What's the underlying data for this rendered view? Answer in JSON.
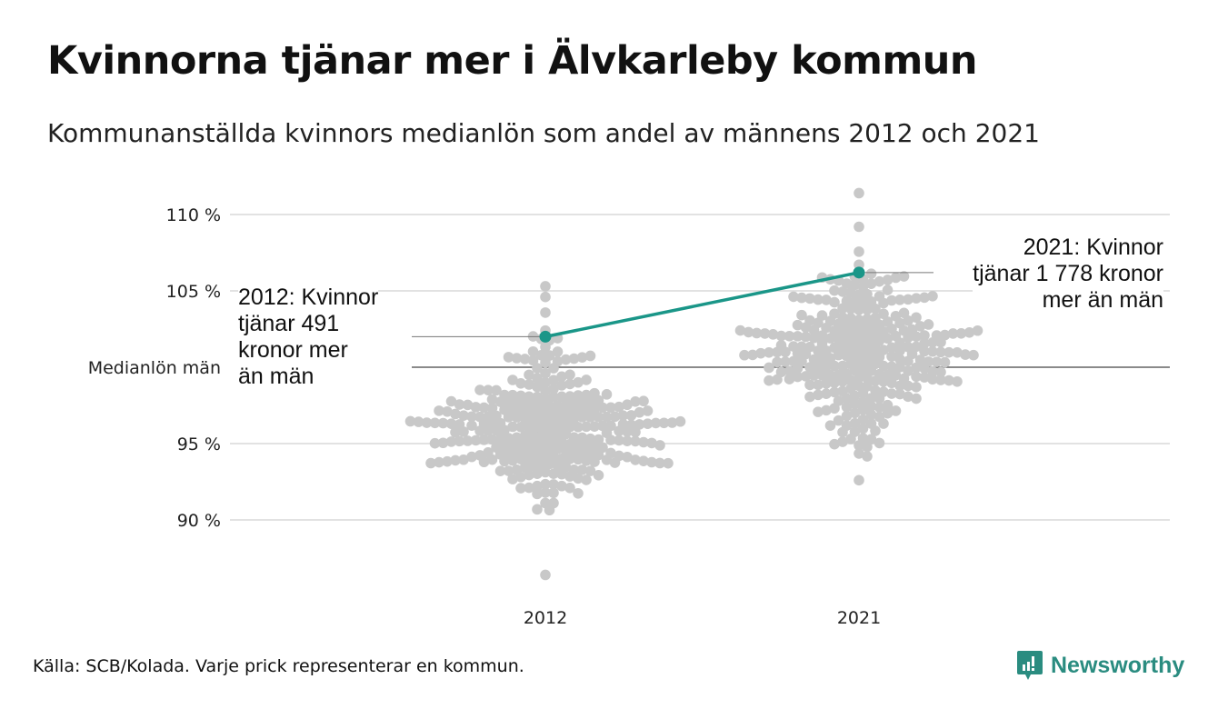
{
  "title": "Kvinnorna tjänar mer i Älvkarleby kommun",
  "subtitle": "Kommunanställda kvinnors medianlön som andel av männens 2012 och 2021",
  "source": "Källa: SCB/Kolada. Varje prick representerar en kommun.",
  "logo": "Newsworthy",
  "colors": {
    "highlight": "#1a9688",
    "dots": "#c8c8c8",
    "grid": "#e2e2e2",
    "baseline": "#444444",
    "logo": "#2a8c80"
  },
  "chart_data": {
    "type": "scatter",
    "subtype": "beeswarm",
    "title": "Kvinnorna tjänar mer i Älvkarleby kommun",
    "ylabel": "",
    "ylim": [
      85.5,
      112
    ],
    "yticks": [
      {
        "value": 110,
        "label": "110 %"
      },
      {
        "value": 105,
        "label": "105 %"
      },
      {
        "value": 100,
        "label": "Medianlön män"
      },
      {
        "value": 95,
        "label": "95 %"
      },
      {
        "value": 90,
        "label": "90 %"
      }
    ],
    "categories": [
      "2012",
      "2021"
    ],
    "series": [
      {
        "name": "2012",
        "count": 290,
        "median": 96.0,
        "sd": 2.6,
        "min": 86.4,
        "max": 105.3,
        "highlight": {
          "name": "Älvkarleby",
          "value": 102.0,
          "annotation": [
            "2012: Kvinnor",
            "tjänar 491",
            "kronor mer",
            "än män"
          ]
        }
      },
      {
        "name": "2021",
        "count": 290,
        "median": 101.2,
        "sd": 2.6,
        "min": 92.6,
        "max": 111.4,
        "highlight": {
          "name": "Älvkarleby",
          "value": 106.2,
          "annotation": [
            "2021: Kvinnor",
            "tjänar 1 778 kronor",
            "mer än män"
          ]
        }
      }
    ]
  }
}
